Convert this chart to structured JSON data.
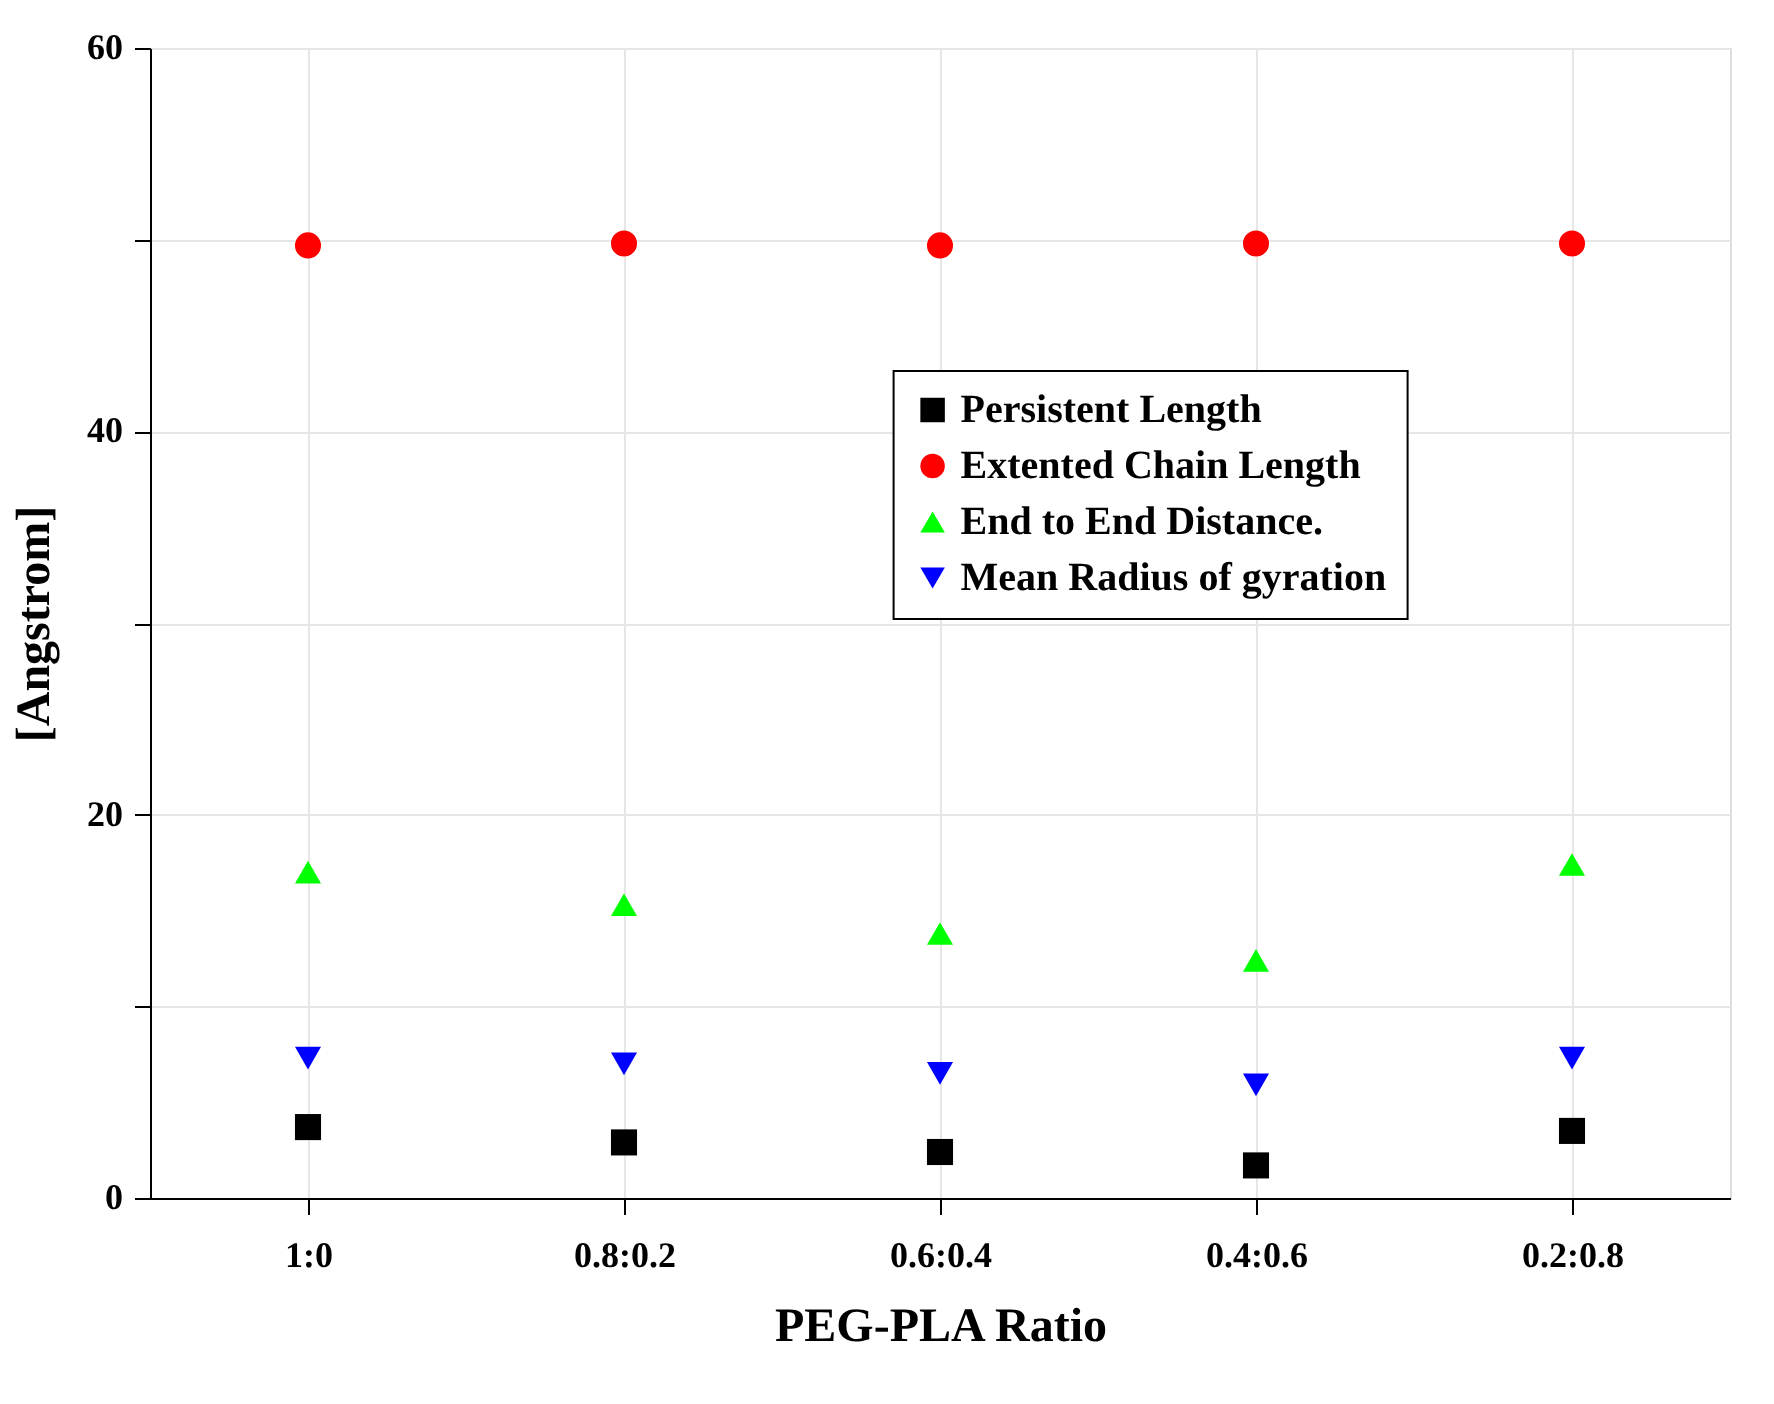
{
  "chart_data": {
    "type": "scatter",
    "xlabel": "PEG-PLA Ratio",
    "ylabel": "[Angstrom]",
    "categories": [
      "1:0",
      "0.8:0.2",
      "0.6:0.4",
      "0.4:0.6",
      "0.2:0.8"
    ],
    "series": [
      {
        "name": "Persistent Length",
        "color": "#000000",
        "marker": "square",
        "values": [
          3.7,
          2.9,
          2.4,
          1.7,
          3.5
        ]
      },
      {
        "name": "Extented Chain Length",
        "color": "#ff0000",
        "marker": "circle",
        "values": [
          49.7,
          49.8,
          49.7,
          49.8,
          49.8
        ]
      },
      {
        "name": "End to End Distance.",
        "color": "#00ff00",
        "marker": "triangle",
        "values": [
          17.0,
          15.3,
          13.8,
          12.4,
          17.4
        ]
      },
      {
        "name": "Mean Radius of gyration",
        "color": "#0000ff",
        "marker": "triangle-down",
        "values": [
          7.3,
          7.0,
          6.5,
          5.9,
          7.3
        ]
      }
    ],
    "ylim": [
      0,
      60
    ],
    "yticks": [
      0,
      {
        "value": 10,
        "label": null
      },
      20,
      {
        "value": 30,
        "label": null
      },
      40,
      {
        "value": 50,
        "label": null
      },
      60
    ],
    "grid": true,
    "legend": "top right"
  }
}
